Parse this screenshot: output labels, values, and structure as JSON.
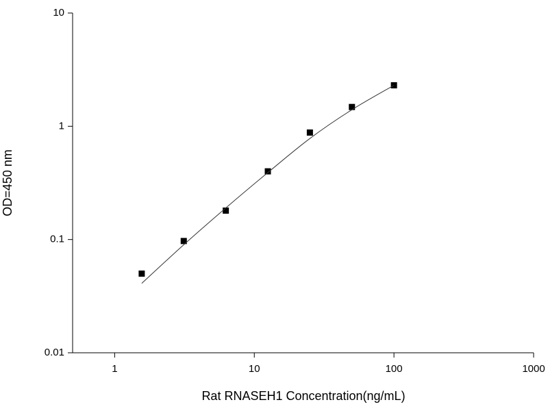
{
  "chart_data": {
    "type": "scatter",
    "x_label": "Rat RNASEH1 Concentration(ng/mL)",
    "y_label": "OD=450 nm",
    "x": [
      1.5625,
      3.125,
      6.25,
      12.5,
      25,
      50,
      100
    ],
    "series": [
      {
        "color": "#000000",
        "marker": "square",
        "values": [
          0.05,
          0.097,
          0.18,
          0.4,
          0.88,
          1.48,
          2.3
        ]
      },
      {
        "color": "#333333",
        "marker": "line",
        "values": [
          0.041,
          0.09,
          0.19,
          0.39,
          0.78,
          1.4,
          2.3
        ]
      }
    ],
    "xscale": "log",
    "yscale": "log",
    "xlim": [
      0.5,
      1000
    ],
    "ylim": [
      0.01,
      10
    ],
    "xticks": [
      1,
      10,
      100,
      1000
    ],
    "yticks": [
      0.01,
      0.1,
      1,
      10
    ]
  }
}
